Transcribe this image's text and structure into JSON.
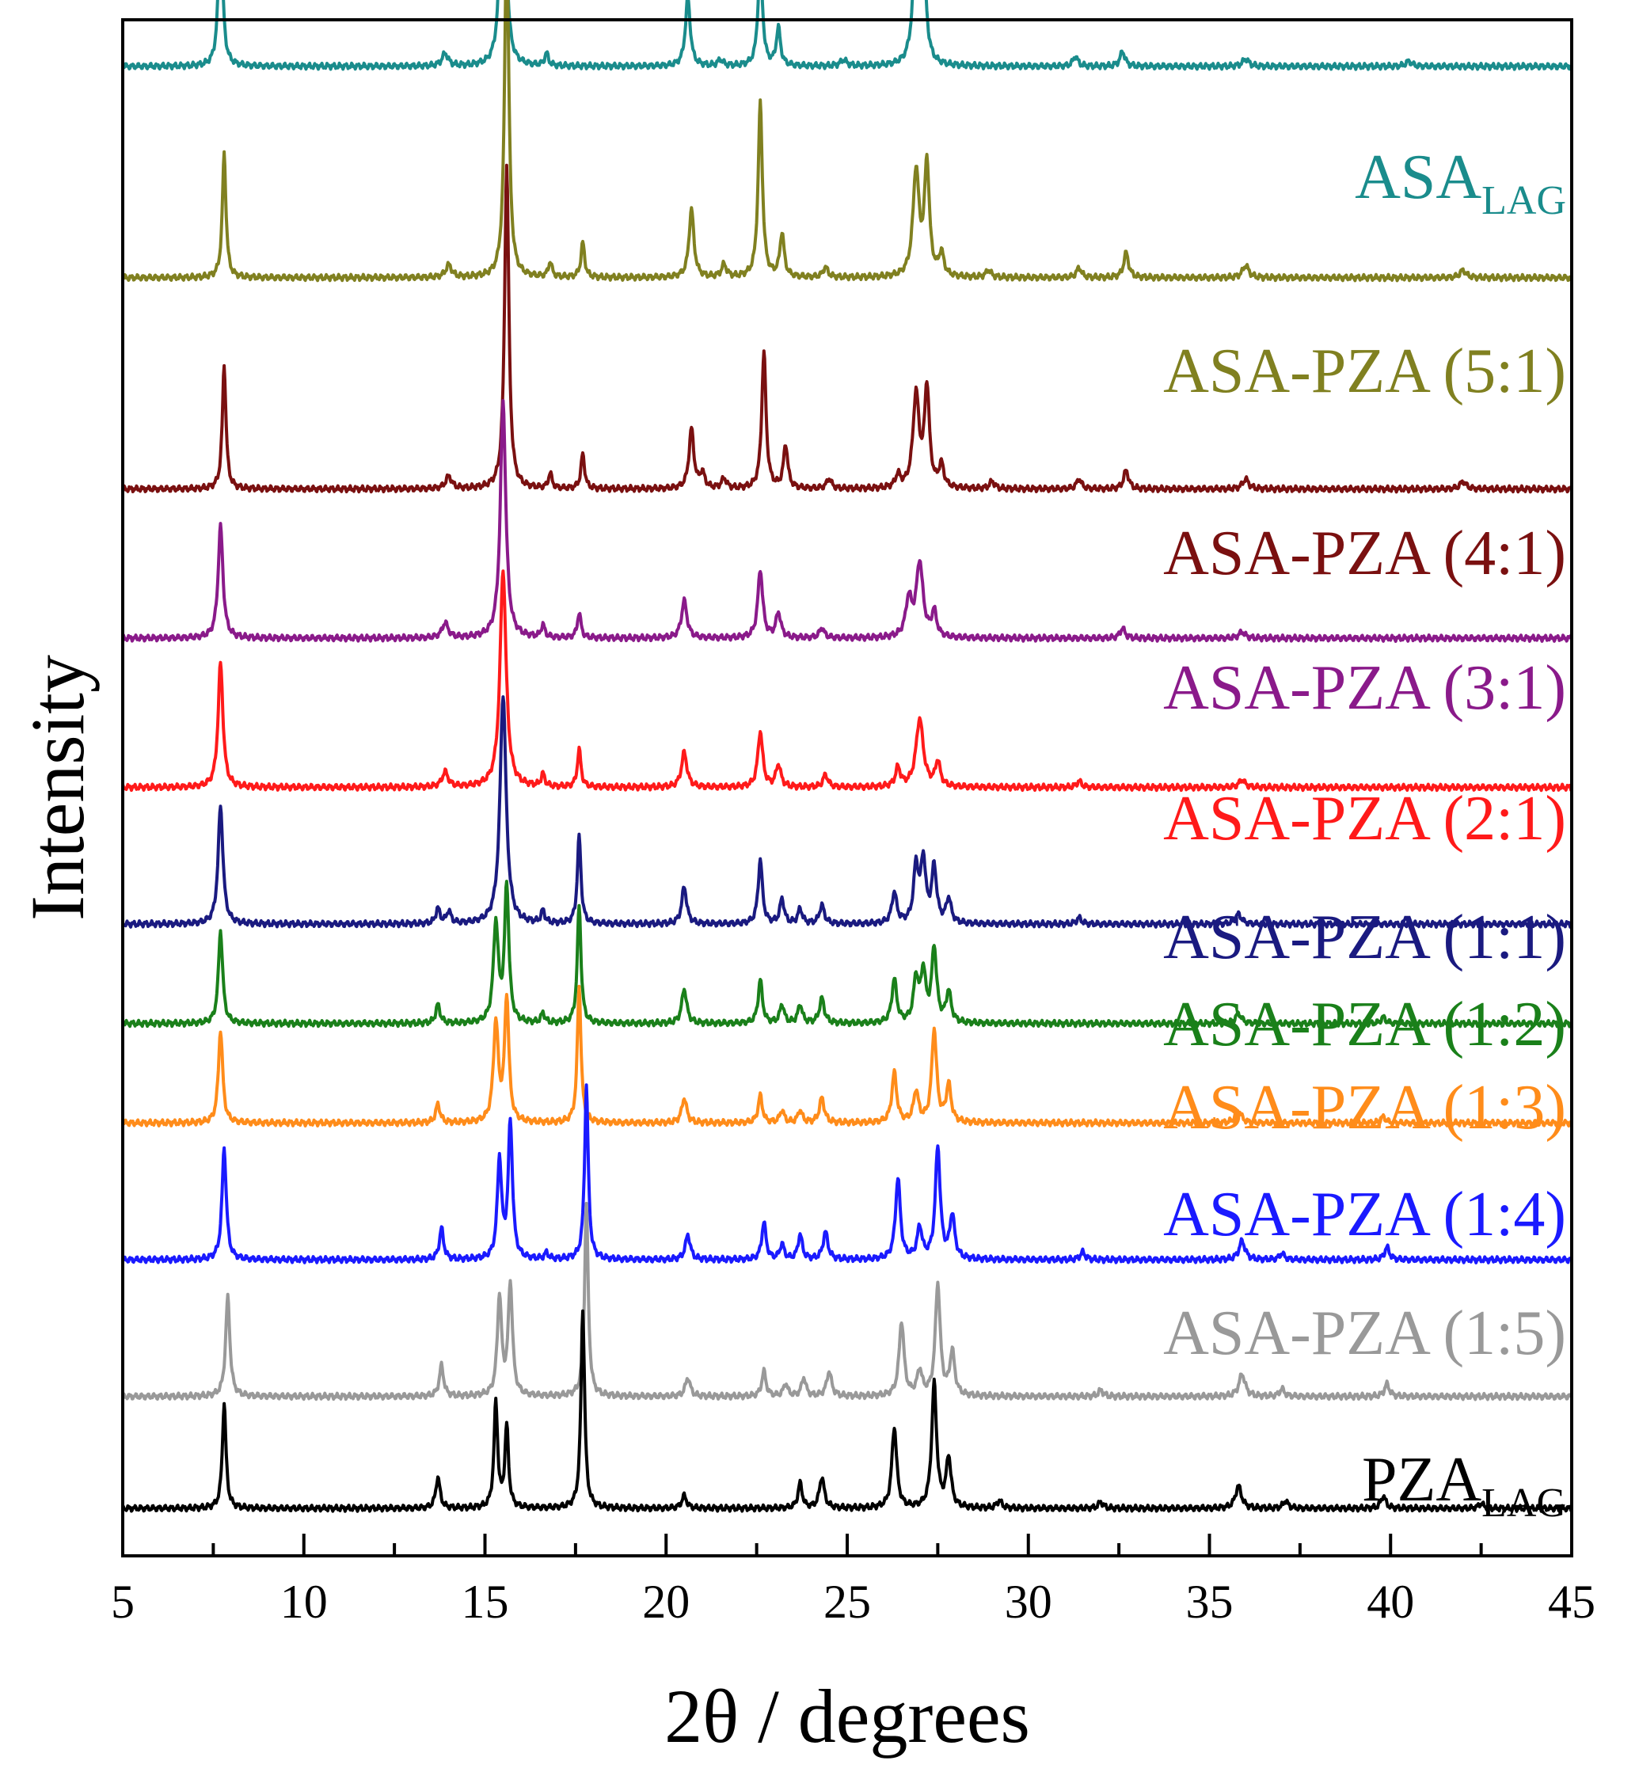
{
  "chart_data": {
    "type": "line",
    "title": "",
    "xlabel": "2θ / degrees",
    "ylabel": "Intensity",
    "xlim": [
      5,
      45
    ],
    "xticks": [
      5,
      10,
      15,
      20,
      25,
      30,
      35,
      40,
      45
    ],
    "grid": false,
    "legend": "inline-right",
    "series": [
      {
        "name": "ASA_LAG",
        "label_main": "ASA",
        "label_sub": "LAG",
        "color": "#1a8c8c",
        "offset": 11.6,
        "peaks": [
          [
            7.7,
            1.2,
            0.07
          ],
          [
            13.9,
            0.1,
            0.1
          ],
          [
            15.5,
            2.85,
            0.07
          ],
          [
            16.7,
            0.1,
            0.06
          ],
          [
            20.6,
            0.55,
            0.08
          ],
          [
            21.5,
            0.05,
            0.08
          ],
          [
            22.6,
            0.9,
            0.07
          ],
          [
            23.1,
            0.3,
            0.07
          ],
          [
            24.9,
            0.05,
            0.1
          ],
          [
            26.9,
            0.95,
            0.1
          ],
          [
            27.1,
            0.9,
            0.08
          ],
          [
            31.3,
            0.08,
            0.08
          ],
          [
            32.6,
            0.12,
            0.08
          ],
          [
            36.0,
            0.06,
            0.1
          ],
          [
            40.5,
            0.04,
            0.1
          ]
        ]
      },
      {
        "name": "ASA-PZA (5:1)",
        "label_main": "ASA-PZA (5:1)",
        "label_sub": "",
        "color": "#808020",
        "offset": 9.9,
        "peaks": [
          [
            7.8,
            1.0,
            0.06
          ],
          [
            14.0,
            0.1,
            0.1
          ],
          [
            15.6,
            2.75,
            0.07
          ],
          [
            16.8,
            0.12,
            0.06
          ],
          [
            17.7,
            0.28,
            0.06
          ],
          [
            20.7,
            0.55,
            0.08
          ],
          [
            21.6,
            0.1,
            0.08
          ],
          [
            22.6,
            1.4,
            0.07
          ],
          [
            23.2,
            0.35,
            0.07
          ],
          [
            24.4,
            0.08,
            0.08
          ],
          [
            26.9,
            0.85,
            0.1
          ],
          [
            27.2,
            0.9,
            0.08
          ],
          [
            27.6,
            0.18,
            0.08
          ],
          [
            28.9,
            0.06,
            0.08
          ],
          [
            31.4,
            0.08,
            0.08
          ],
          [
            32.7,
            0.2,
            0.08
          ],
          [
            36.0,
            0.1,
            0.1
          ],
          [
            42.0,
            0.06,
            0.1
          ]
        ]
      },
      {
        "name": "ASA-PZA (4:1)",
        "label_main": "ASA-PZA (4:1)",
        "label_sub": "",
        "color": "#7a1010",
        "offset": 8.2,
        "peaks": [
          [
            7.8,
            1.0,
            0.06
          ],
          [
            14.0,
            0.1,
            0.1
          ],
          [
            15.6,
            2.6,
            0.07
          ],
          [
            16.8,
            0.12,
            0.06
          ],
          [
            17.7,
            0.28,
            0.06
          ],
          [
            20.7,
            0.48,
            0.08
          ],
          [
            21.0,
            0.12,
            0.08
          ],
          [
            21.6,
            0.08,
            0.08
          ],
          [
            22.7,
            1.1,
            0.07
          ],
          [
            23.3,
            0.35,
            0.07
          ],
          [
            24.5,
            0.08,
            0.08
          ],
          [
            26.4,
            0.1,
            0.08
          ],
          [
            26.9,
            0.75,
            0.1
          ],
          [
            27.2,
            0.8,
            0.08
          ],
          [
            27.6,
            0.18,
            0.08
          ],
          [
            29.0,
            0.06,
            0.08
          ],
          [
            31.4,
            0.08,
            0.08
          ],
          [
            32.7,
            0.15,
            0.08
          ],
          [
            36.0,
            0.08,
            0.1
          ],
          [
            42.0,
            0.06,
            0.1
          ]
        ]
      },
      {
        "name": "ASA-PZA (3:1)",
        "label_main": "ASA-PZA (3:1)",
        "label_sub": "",
        "color": "#8a1a8a",
        "offset": 7.0,
        "peaks": [
          [
            7.7,
            0.9,
            0.08
          ],
          [
            13.9,
            0.12,
            0.1
          ],
          [
            15.5,
            1.9,
            0.09
          ],
          [
            16.6,
            0.1,
            0.06
          ],
          [
            17.6,
            0.2,
            0.06
          ],
          [
            20.5,
            0.3,
            0.09
          ],
          [
            22.6,
            0.55,
            0.08
          ],
          [
            23.1,
            0.2,
            0.08
          ],
          [
            24.3,
            0.08,
            0.08
          ],
          [
            26.7,
            0.3,
            0.1
          ],
          [
            27.0,
            0.6,
            0.11
          ],
          [
            27.4,
            0.2,
            0.08
          ],
          [
            32.6,
            0.08,
            0.08
          ],
          [
            35.9,
            0.05,
            0.1
          ]
        ]
      },
      {
        "name": "ASA-PZA (2:1)",
        "label_main": "ASA-PZA (2:1)",
        "label_sub": "",
        "color": "#ff1a1a",
        "offset": 5.8,
        "peaks": [
          [
            7.7,
            1.0,
            0.08
          ],
          [
            13.9,
            0.12,
            0.1
          ],
          [
            15.5,
            1.75,
            0.1
          ],
          [
            16.6,
            0.1,
            0.06
          ],
          [
            17.6,
            0.3,
            0.06
          ],
          [
            20.5,
            0.28,
            0.09
          ],
          [
            22.6,
            0.45,
            0.08
          ],
          [
            23.1,
            0.18,
            0.08
          ],
          [
            24.4,
            0.1,
            0.08
          ],
          [
            26.4,
            0.15,
            0.08
          ],
          [
            27.0,
            0.55,
            0.12
          ],
          [
            27.5,
            0.2,
            0.08
          ],
          [
            31.4,
            0.05,
            0.08
          ],
          [
            35.9,
            0.06,
            0.1
          ]
        ]
      },
      {
        "name": "ASA-PZA (1:1)",
        "label_main": "ASA-PZA (1:1)",
        "label_sub": "",
        "color": "#1a1a80",
        "offset": 4.7,
        "peaks": [
          [
            7.7,
            0.95,
            0.08
          ],
          [
            13.7,
            0.12,
            0.07
          ],
          [
            14.0,
            0.1,
            0.07
          ],
          [
            15.5,
            1.85,
            0.1
          ],
          [
            16.6,
            0.1,
            0.06
          ],
          [
            17.6,
            0.7,
            0.06
          ],
          [
            20.5,
            0.3,
            0.08
          ],
          [
            22.6,
            0.52,
            0.07
          ],
          [
            23.2,
            0.2,
            0.07
          ],
          [
            23.7,
            0.12,
            0.07
          ],
          [
            24.3,
            0.15,
            0.08
          ],
          [
            26.3,
            0.25,
            0.08
          ],
          [
            26.9,
            0.45,
            0.08
          ],
          [
            27.1,
            0.5,
            0.08
          ],
          [
            27.4,
            0.45,
            0.08
          ],
          [
            27.8,
            0.2,
            0.08
          ],
          [
            31.4,
            0.05,
            0.08
          ],
          [
            35.8,
            0.08,
            0.1
          ]
        ]
      },
      {
        "name": "ASA-PZA (1:2)",
        "label_main": "ASA-PZA (1:2)",
        "label_sub": "",
        "color": "#1a801a",
        "offset": 3.9,
        "peaks": [
          [
            7.7,
            0.75,
            0.07
          ],
          [
            13.7,
            0.15,
            0.07
          ],
          [
            15.3,
            0.8,
            0.08
          ],
          [
            15.6,
            1.1,
            0.07
          ],
          [
            16.6,
            0.08,
            0.06
          ],
          [
            17.6,
            0.95,
            0.06
          ],
          [
            20.5,
            0.28,
            0.08
          ],
          [
            22.6,
            0.35,
            0.07
          ],
          [
            23.2,
            0.15,
            0.07
          ],
          [
            23.7,
            0.15,
            0.07
          ],
          [
            24.3,
            0.2,
            0.08
          ],
          [
            26.3,
            0.35,
            0.08
          ],
          [
            26.9,
            0.35,
            0.08
          ],
          [
            27.1,
            0.4,
            0.08
          ],
          [
            27.4,
            0.6,
            0.08
          ],
          [
            27.8,
            0.25,
            0.08
          ],
          [
            35.8,
            0.08,
            0.1
          ],
          [
            39.8,
            0.05,
            0.08
          ]
        ]
      },
      {
        "name": "ASA-PZA (1:3)",
        "label_main": "ASA-PZA (1:3)",
        "label_sub": "",
        "color": "#ff8c1a",
        "offset": 3.1,
        "peaks": [
          [
            7.7,
            0.75,
            0.07
          ],
          [
            13.7,
            0.15,
            0.07
          ],
          [
            15.3,
            0.8,
            0.08
          ],
          [
            15.6,
            1.0,
            0.07
          ],
          [
            17.6,
            1.1,
            0.06
          ],
          [
            20.5,
            0.2,
            0.08
          ],
          [
            22.6,
            0.22,
            0.07
          ],
          [
            23.2,
            0.1,
            0.07
          ],
          [
            23.7,
            0.1,
            0.07
          ],
          [
            24.3,
            0.2,
            0.08
          ],
          [
            26.3,
            0.4,
            0.08
          ],
          [
            26.9,
            0.25,
            0.08
          ],
          [
            27.4,
            0.75,
            0.08
          ],
          [
            27.8,
            0.3,
            0.08
          ],
          [
            35.8,
            0.1,
            0.1
          ],
          [
            39.8,
            0.05,
            0.08
          ]
        ]
      },
      {
        "name": "ASA-PZA (1:4)",
        "label_main": "ASA-PZA (1:4)",
        "label_sub": "",
        "color": "#1a1aff",
        "offset": 2.0,
        "peaks": [
          [
            7.8,
            0.9,
            0.07
          ],
          [
            13.8,
            0.25,
            0.07
          ],
          [
            15.4,
            0.8,
            0.07
          ],
          [
            15.7,
            1.1,
            0.07
          ],
          [
            16.7,
            0.05,
            0.06
          ],
          [
            17.8,
            1.4,
            0.06
          ],
          [
            20.6,
            0.2,
            0.08
          ],
          [
            22.7,
            0.3,
            0.07
          ],
          [
            23.2,
            0.12,
            0.07
          ],
          [
            23.7,
            0.2,
            0.07
          ],
          [
            24.4,
            0.22,
            0.08
          ],
          [
            26.4,
            0.65,
            0.08
          ],
          [
            27.0,
            0.25,
            0.08
          ],
          [
            27.5,
            0.9,
            0.08
          ],
          [
            27.9,
            0.35,
            0.08
          ],
          [
            31.5,
            0.06,
            0.08
          ],
          [
            35.9,
            0.15,
            0.1
          ],
          [
            37.0,
            0.05,
            0.08
          ],
          [
            39.9,
            0.1,
            0.08
          ]
        ]
      },
      {
        "name": "ASA-PZA (1:5)",
        "label_main": "ASA-PZA (1:5)",
        "label_sub": "",
        "color": "#999999",
        "offset": 0.9,
        "peaks": [
          [
            7.9,
            0.8,
            0.07
          ],
          [
            13.8,
            0.25,
            0.07
          ],
          [
            15.4,
            0.8,
            0.07
          ],
          [
            15.7,
            0.9,
            0.07
          ],
          [
            17.8,
            1.55,
            0.06
          ],
          [
            20.6,
            0.15,
            0.08
          ],
          [
            22.7,
            0.2,
            0.07
          ],
          [
            23.3,
            0.1,
            0.07
          ],
          [
            23.8,
            0.15,
            0.07
          ],
          [
            24.5,
            0.2,
            0.08
          ],
          [
            26.5,
            0.6,
            0.08
          ],
          [
            27.0,
            0.2,
            0.08
          ],
          [
            27.5,
            0.9,
            0.08
          ],
          [
            27.9,
            0.35,
            0.08
          ],
          [
            32.0,
            0.05,
            0.08
          ],
          [
            35.9,
            0.18,
            0.1
          ],
          [
            37.0,
            0.06,
            0.08
          ],
          [
            39.9,
            0.1,
            0.08
          ]
        ]
      },
      {
        "name": "PZA_LAG",
        "label_main": "PZA",
        "label_sub": "LAG",
        "color": "#000000",
        "offset": 0.0,
        "peaks": [
          [
            7.8,
            0.85,
            0.06
          ],
          [
            13.7,
            0.25,
            0.07
          ],
          [
            15.3,
            0.85,
            0.06
          ],
          [
            15.6,
            0.65,
            0.06
          ],
          [
            17.7,
            1.6,
            0.06
          ],
          [
            20.5,
            0.1,
            0.08
          ],
          [
            23.7,
            0.2,
            0.07
          ],
          [
            24.3,
            0.25,
            0.08
          ],
          [
            26.3,
            0.65,
            0.08
          ],
          [
            27.4,
            1.0,
            0.08
          ],
          [
            27.8,
            0.4,
            0.08
          ],
          [
            29.2,
            0.06,
            0.08
          ],
          [
            32.0,
            0.05,
            0.08
          ],
          [
            35.8,
            0.18,
            0.1
          ],
          [
            37.1,
            0.06,
            0.08
          ],
          [
            39.8,
            0.1,
            0.08
          ],
          [
            42.5,
            0.04,
            0.08
          ]
        ]
      }
    ]
  }
}
